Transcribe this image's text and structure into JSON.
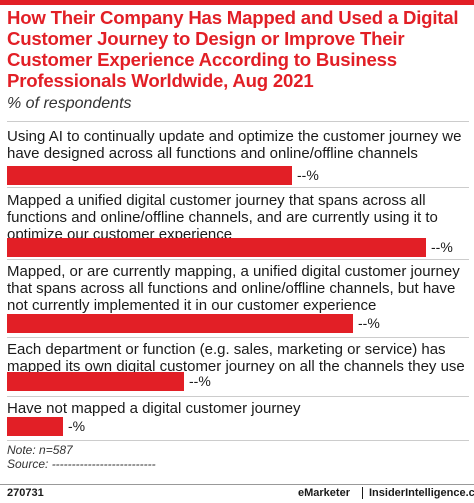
{
  "title": "How Their Company Has Mapped and Used a Digital Customer Journey to Design or Improve Their Customer Experience According to Business Professionals Worldwide, Aug 2021",
  "subtitle": "% of respondents",
  "chart_data": {
    "type": "bar",
    "orientation": "horizontal",
    "categories": [
      "Using AI to continually update and optimize the customer journey we have designed across all functions and online/offline channels",
      "Mapped a unified digital customer journey that spans across all functions and online/offline channels, and are currently using it to optimize our customer experience",
      "Mapped, or are currently mapping, a unified digital customer journey that spans across all functions and online/offline channels, but have not currently implemented it in our customer experience",
      "Each department or function (e.g. sales, marketing or service) has mapped its own digital customer journey on all the channels they use",
      "Have not mapped a digital customer journey"
    ],
    "values": [
      66,
      97,
      80,
      41,
      13
    ],
    "value_labels": [
      "--%",
      "--%",
      "--%",
      "--%",
      "-%"
    ],
    "bar_color": "#e21f26",
    "grid": false,
    "legend": "none"
  },
  "note": "Note: n=587",
  "source": "Source: --------------------------",
  "footer": {
    "id": "270731",
    "brand": "eMarketer",
    "site": "InsiderIntelligence.com"
  },
  "colors": {
    "accent": "#e21f26"
  }
}
